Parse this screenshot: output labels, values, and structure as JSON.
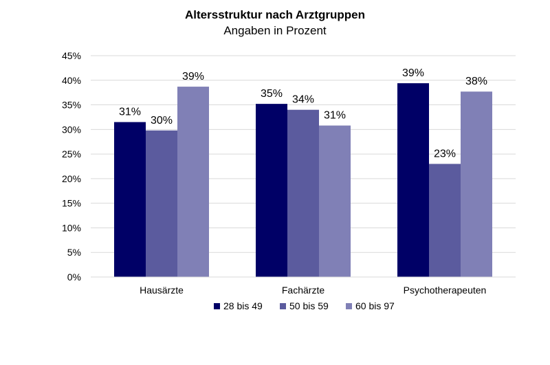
{
  "chart_data": {
    "type": "bar",
    "title": "Altersstruktur nach Arztgruppen",
    "subtitle": "Angaben in Prozent",
    "categories": [
      "Hausärzte",
      "Fachärzte",
      "Psychotherapeuten"
    ],
    "series": [
      {
        "name": "28 bis 49",
        "values": [
          31.5,
          35.2,
          39.4
        ],
        "labels": [
          "31%",
          "35%",
          "39%"
        ],
        "color": "#000066"
      },
      {
        "name": "50 bis 59",
        "values": [
          29.8,
          34.0,
          23.0
        ],
        "labels": [
          "30%",
          "34%",
          "23%"
        ],
        "color": "#5b5b9e"
      },
      {
        "name": "60 bis 97",
        "values": [
          38.7,
          30.8,
          37.7
        ],
        "labels": [
          "39%",
          "31%",
          "38%"
        ],
        "color": "#8080b6"
      }
    ],
    "ylim": [
      0,
      45
    ],
    "yticks": [
      "0%",
      "5%",
      "10%",
      "15%",
      "20%",
      "25%",
      "30%",
      "35%",
      "40%",
      "45%"
    ],
    "ytick_values": [
      0,
      5,
      10,
      15,
      20,
      25,
      30,
      35,
      40,
      45
    ],
    "grid": true,
    "legend_position": "bottom"
  }
}
